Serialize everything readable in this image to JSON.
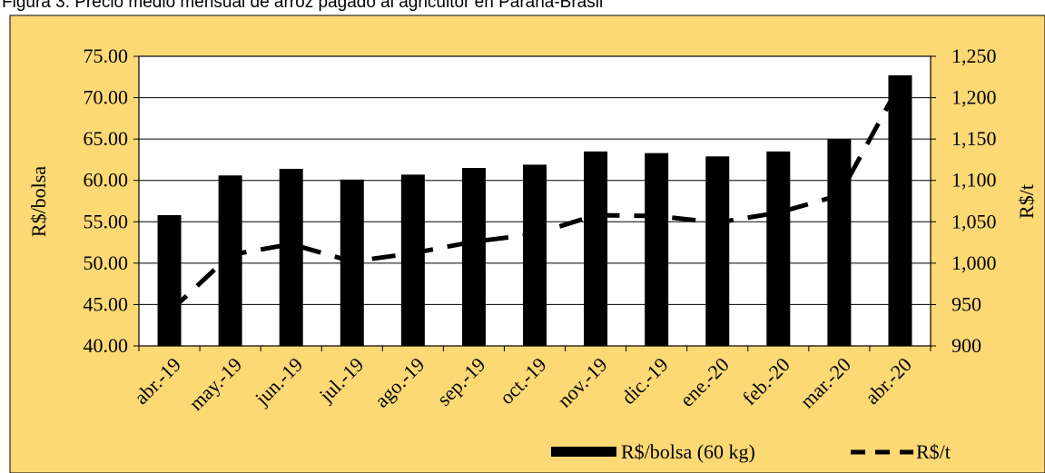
{
  "caption": "Figura 3. Precio medio mensual de arroz pagado al agricultor en Paraná-Brasil",
  "chart_data": {
    "type": "bar",
    "categories": [
      "abr.-19",
      "may.-19",
      "jun.-19",
      "jul.-19",
      "ago.-19",
      "sep.-19",
      "oct.-19",
      "nov.-19",
      "dic.-19",
      "ene.-20",
      "feb.-20",
      "mar.-20",
      "abr.-20"
    ],
    "series": [
      {
        "name": "R$/bolsa (60 kg)",
        "type": "bar",
        "axis": "left",
        "values": [
          55.8,
          60.6,
          61.4,
          60.1,
          60.7,
          61.5,
          61.9,
          63.5,
          63.3,
          62.9,
          63.5,
          65.0,
          72.7
        ],
        "color": "#000000"
      },
      {
        "name": "R$/t",
        "type": "line",
        "style": "dashed",
        "axis": "right",
        "values": [
          941,
          1010,
          1023,
          1002,
          1012,
          1026,
          1035,
          1058,
          1057,
          1049,
          1061,
          1082,
          1217
        ],
        "color": "#000000"
      }
    ],
    "ylabel": "R$/bolsa",
    "y2label": "R$/t",
    "ylim": [
      40,
      75
    ],
    "y2lim": [
      900,
      1250
    ],
    "yticks": [
      "40.00",
      "45.00",
      "50.00",
      "55.00",
      "60.00",
      "65.00",
      "70.00",
      "75.00"
    ],
    "y2ticks": [
      "900",
      "950",
      "1,000",
      "1,050",
      "1,100",
      "1,150",
      "1,200",
      "1,250"
    ],
    "grid": true,
    "legend_position": "bottom-right",
    "colors": {
      "background": "#fdd976",
      "plot": "#ffffff",
      "marks": "#000000"
    }
  }
}
